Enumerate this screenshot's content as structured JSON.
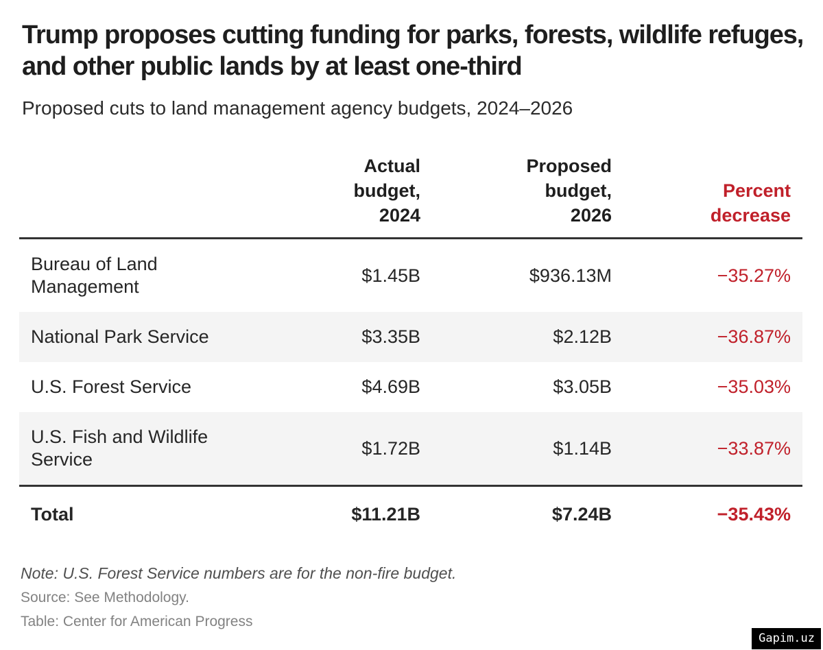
{
  "header": {
    "title": "Trump proposes cutting funding for parks, forests, wildlife refuges, and other public lands by at least one-third",
    "subtitle": "Proposed cuts to land management agency budgets, 2024–2026"
  },
  "table": {
    "columns": {
      "agency": "",
      "actual": "Actual\nbudget,\n2024",
      "proposed": "Proposed\nbudget,\n2026",
      "percent": "Percent\ndecrease"
    },
    "rows": [
      {
        "agency": "Bureau of Land Management",
        "actual": "$1.45B",
        "proposed": "$936.13M",
        "percent": "−35.27%"
      },
      {
        "agency": "National Park Service",
        "actual": "$3.35B",
        "proposed": "$2.12B",
        "percent": "−36.87%"
      },
      {
        "agency": "U.S. Forest Service",
        "actual": "$4.69B",
        "proposed": "$3.05B",
        "percent": "−35.03%"
      },
      {
        "agency": "U.S. Fish and Wildlife Service",
        "actual": "$1.72B",
        "proposed": "$1.14B",
        "percent": "−33.87%"
      }
    ],
    "total": {
      "agency": "Total",
      "actual": "$11.21B",
      "proposed": "$7.24B",
      "percent": "−35.43%"
    }
  },
  "footer": {
    "note": "Note: U.S. Forest Service numbers are for the non-fire budget.",
    "source": "Source: See Methodology.",
    "credit": "Table: Center for American Progress"
  },
  "watermark": "Gapim.uz",
  "colors": {
    "accent_red": "#c0202a",
    "rule_dark": "#333333",
    "row_stripe": "#f4f4f4",
    "title_text": "#1e1e1e"
  },
  "chart_data": {
    "type": "table",
    "title": "Trump proposes cutting funding for parks, forests, wildlife refuges, and other public lands by at least one-third",
    "subtitle": "Proposed cuts to land management agency budgets, 2024–2026",
    "columns": [
      "Agency",
      "Actual budget, 2024",
      "Proposed budget, 2026",
      "Percent decrease"
    ],
    "rows": [
      {
        "agency": "Bureau of Land Management",
        "actual_budget_2024_usd": 1450000000,
        "proposed_budget_2026_usd": 936130000,
        "percent_decrease": -35.27
      },
      {
        "agency": "National Park Service",
        "actual_budget_2024_usd": 3350000000,
        "proposed_budget_2026_usd": 2120000000,
        "percent_decrease": -36.87
      },
      {
        "agency": "U.S. Forest Service",
        "actual_budget_2024_usd": 4690000000,
        "proposed_budget_2026_usd": 3050000000,
        "percent_decrease": -35.03
      },
      {
        "agency": "U.S. Fish and Wildlife Service",
        "actual_budget_2024_usd": 1720000000,
        "proposed_budget_2026_usd": 1140000000,
        "percent_decrease": -33.87
      }
    ],
    "total": {
      "agency": "Total",
      "actual_budget_2024_usd": 11210000000,
      "proposed_budget_2026_usd": 7240000000,
      "percent_decrease": -35.43
    },
    "note": "Note: U.S. Forest Service numbers are for the non-fire budget.",
    "source": "Source: See Methodology.",
    "credit": "Table: Center for American Progress"
  }
}
